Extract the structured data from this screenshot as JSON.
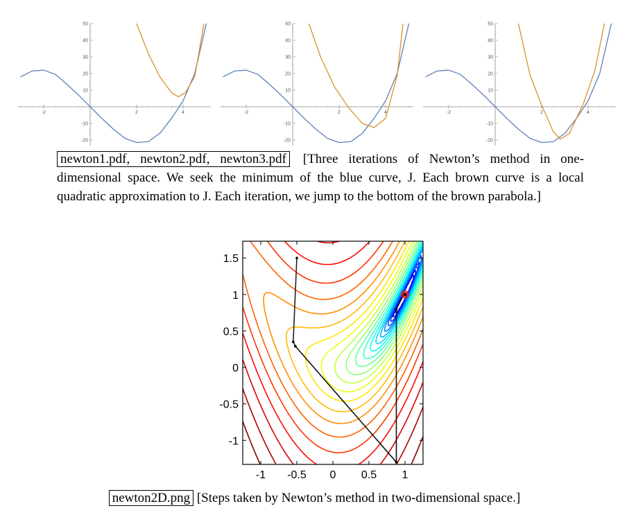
{
  "figure_1d": {
    "ytick_labels": [
      "50",
      "40",
      "30",
      "20",
      "10",
      "-10",
      "-20"
    ],
    "xtick_labels": [
      "-2",
      "2",
      "4"
    ],
    "colors": {
      "objective": "#5b7fb5",
      "approximation": "#d9902b"
    }
  },
  "caption_1d": {
    "filenames": "newton1.pdf, newton2.pdf, newton3.pdf",
    "text": "[Three iterations of Newton’s method in one-dimensional space. We seek the minimum of the blue curve, J. Each brown curve is a local quadratic approximation to J. Each iteration, we jump to the bottom of the brown parabola.]"
  },
  "figure_2d": {
    "xtick_labels": [
      "-1",
      "-0.5",
      "0",
      "0.5",
      "1"
    ],
    "ytick_labels": [
      "1.5",
      "1",
      "0.5",
      "0",
      "-0.5",
      "-1"
    ],
    "marker_color": "#e02020"
  },
  "caption_2d": {
    "filename": "newton2D.png",
    "text": "[Steps taken by Newton’s method in two-dimensional space.]"
  },
  "chart_data": [
    {
      "type": "line",
      "x_range": [
        -3.1,
        5.0
      ],
      "ylim": [
        -22,
        50
      ],
      "series": [
        {
          "x": [
            -3.0,
            -2.5,
            -2.0,
            -1.5,
            -1.0,
            -0.5,
            0,
            0.5,
            1.0,
            1.5,
            2.0,
            2.5,
            3.0,
            3.5,
            4.0,
            4.5,
            5.0
          ],
          "values": [
            18,
            21.5,
            22,
            19.5,
            13.5,
            7,
            0,
            -7,
            -13.5,
            -19,
            -21.5,
            -21,
            -16,
            -7,
            3.5,
            20,
            50
          ]
        },
        {
          "x": [
            2.0,
            2.5,
            3.0,
            3.5,
            3.8,
            4.1,
            4.5,
            4.9
          ],
          "values": [
            50,
            32,
            18,
            8.5,
            6,
            8.5,
            18,
            50
          ]
        }
      ]
    },
    {
      "type": "line",
      "x_range": [
        -3.1,
        5.0
      ],
      "ylim": [
        -22,
        50
      ],
      "series": [
        {
          "x": [
            -3.0,
            -2.5,
            -2.0,
            -1.5,
            -1.0,
            -0.5,
            0,
            0.5,
            1.0,
            1.5,
            2.0,
            2.5,
            3.0,
            3.5,
            4.0,
            4.5,
            5.0
          ],
          "values": [
            18,
            21.5,
            22,
            19.5,
            13.5,
            7,
            0,
            -7,
            -13.5,
            -19,
            -21.5,
            -21,
            -16,
            -7,
            3.5,
            20,
            50
          ]
        },
        {
          "x": [
            0.7,
            1.2,
            1.8,
            2.4,
            3.0,
            3.5,
            4.0,
            4.5,
            4.75
          ],
          "values": [
            50,
            30,
            12,
            -0.5,
            -10,
            -12.5,
            -7,
            19,
            50
          ]
        }
      ]
    },
    {
      "type": "line",
      "x_range": [
        -3.1,
        5.0
      ],
      "ylim": [
        -22,
        50
      ],
      "series": [
        {
          "x": [
            -3.0,
            -2.5,
            -2.0,
            -1.5,
            -1.0,
            -0.5,
            0,
            0.5,
            1.0,
            1.5,
            2.0,
            2.5,
            3.0,
            3.5,
            4.0,
            4.5,
            5.0
          ],
          "values": [
            18,
            21.5,
            22,
            19.5,
            13.5,
            7,
            0,
            -7,
            -13.5,
            -19,
            -21.5,
            -21,
            -16,
            -7,
            3.5,
            20,
            50
          ]
        },
        {
          "x": [
            1.0,
            1.5,
            2.0,
            2.5,
            2.8,
            3.2,
            3.8,
            4.3,
            4.7
          ],
          "values": [
            50,
            19,
            1,
            -15,
            -19.5,
            -16,
            2,
            22,
            50
          ]
        }
      ]
    },
    {
      "type": "line",
      "xlim": [
        -1.25,
        1.25
      ],
      "ylim": [
        -1.33,
        1.73
      ],
      "series": [
        {
          "x": [
            -0.5,
            -0.55,
            -0.52
          ],
          "values": [
            1.5,
            0.35,
            0.29
          ]
        },
        {
          "x": [
            -0.52,
            0.88,
            0.88,
            0.88,
            0.98,
            1.0
          ],
          "values": [
            0.29,
            -1.3,
            -1.3,
            0.8,
            0.99,
            1.0
          ]
        }
      ]
    }
  ]
}
